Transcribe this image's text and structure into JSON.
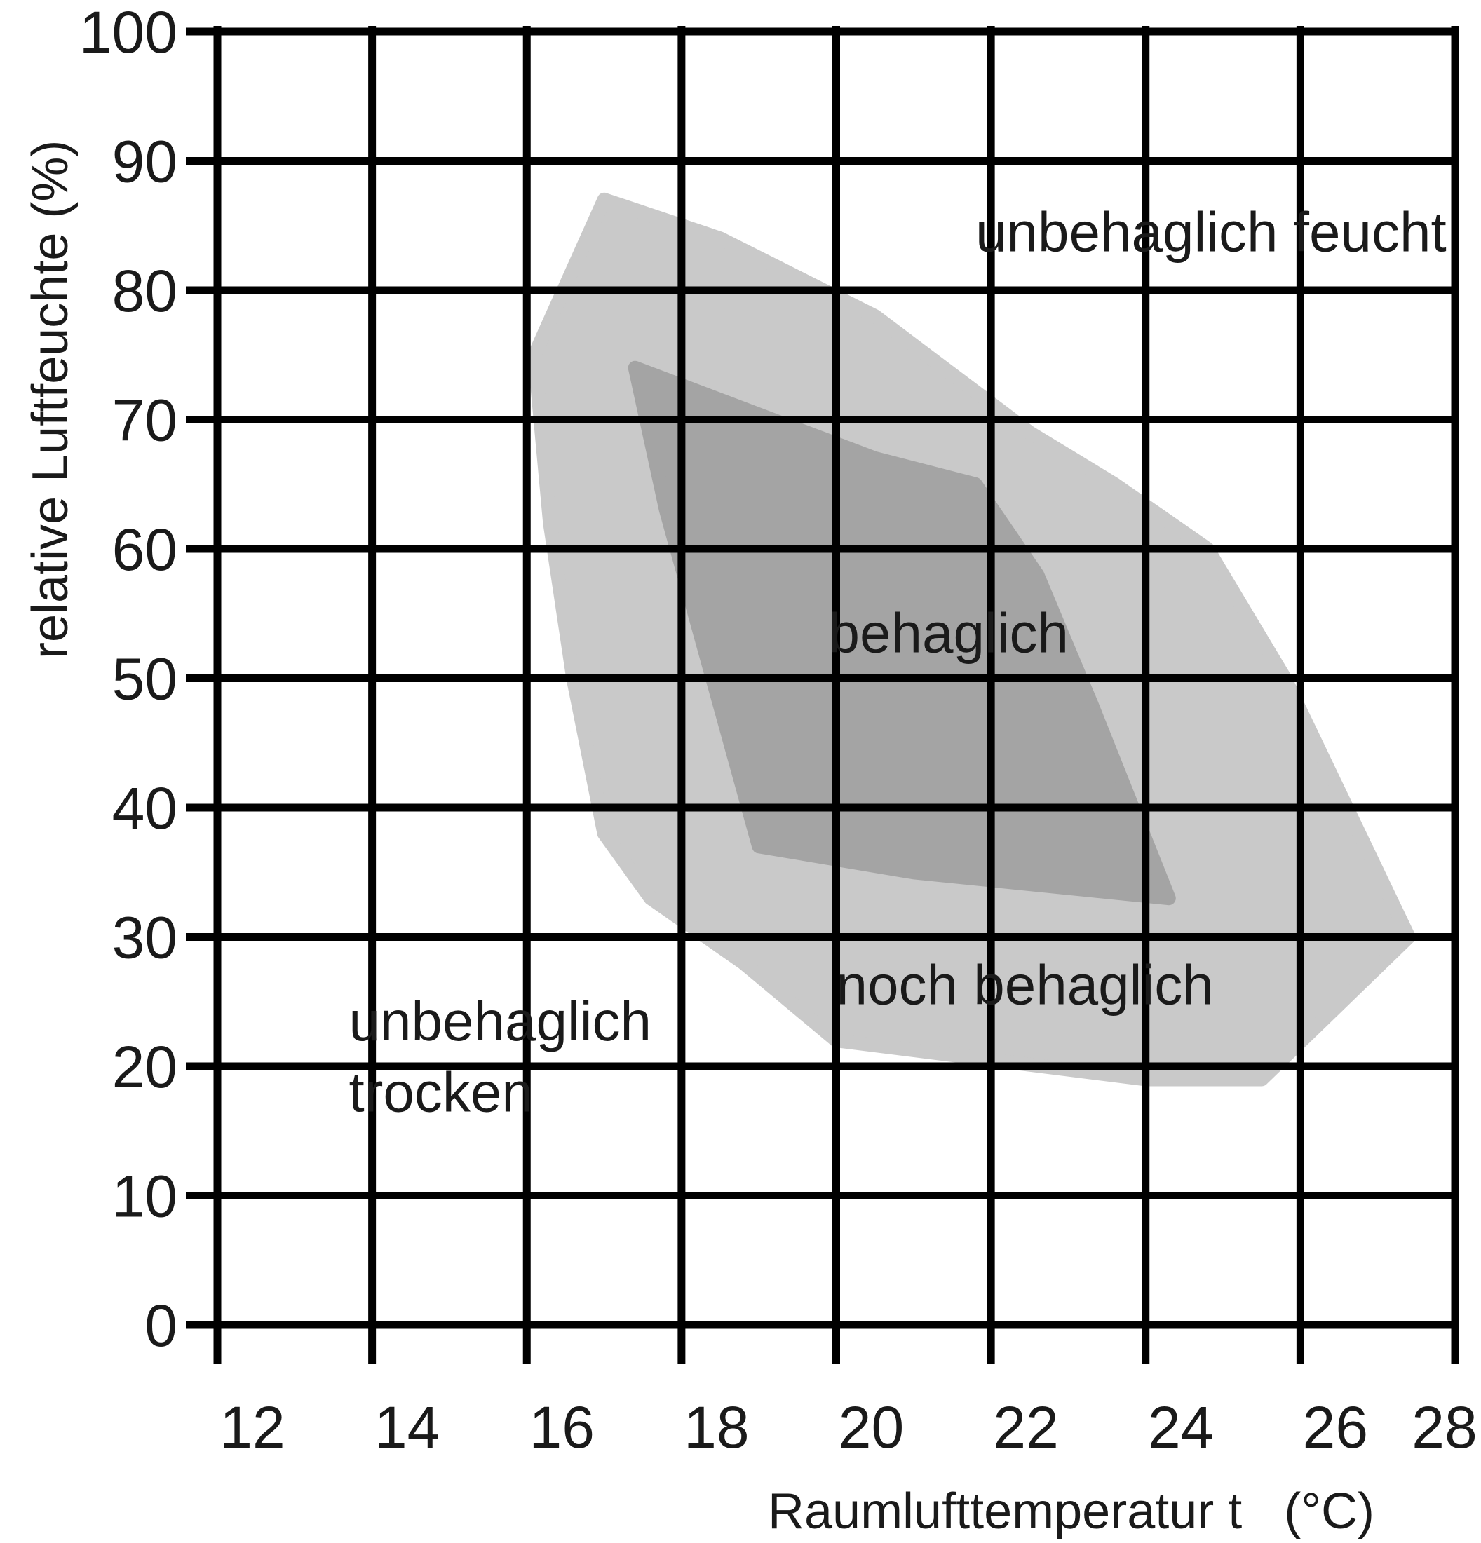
{
  "chart_data": {
    "type": "area",
    "xlabel": "Raumlufttemperatur t",
    "xlabel_unit": "(°C)",
    "ylabel": "relative Luftfeuchte (%)",
    "xlim": [
      12,
      28
    ],
    "ylim": [
      0,
      100
    ],
    "x_ticks": [
      "12",
      "14",
      "16",
      "18",
      "20",
      "22",
      "24",
      "26",
      "28"
    ],
    "y_ticks": [
      "0",
      "10",
      "20",
      "30",
      "40",
      "50",
      "60",
      "70",
      "80",
      "90",
      "100"
    ],
    "grid": true,
    "zones": [
      {
        "name": "noch behaglich",
        "color": "#c9c9c9",
        "points": [
          [
            16.1,
            75
          ],
          [
            17.0,
            87
          ],
          [
            18.5,
            84
          ],
          [
            20.5,
            78
          ],
          [
            22.5,
            69
          ],
          [
            23.6,
            65
          ],
          [
            24.8,
            60
          ],
          [
            25.8,
            50
          ],
          [
            27.4,
            30
          ],
          [
            25.5,
            19
          ],
          [
            24.0,
            19
          ],
          [
            20.0,
            22
          ],
          [
            18.8,
            28
          ],
          [
            17.6,
            33
          ],
          [
            17.0,
            38
          ],
          [
            16.6,
            50
          ],
          [
            16.3,
            62
          ]
        ]
      },
      {
        "name": "behaglich",
        "color": "#a4a4a4",
        "points": [
          [
            17.4,
            74
          ],
          [
            20.5,
            67
          ],
          [
            21.8,
            65
          ],
          [
            22.6,
            58
          ],
          [
            23.3,
            48
          ],
          [
            24.3,
            33
          ],
          [
            21.0,
            35
          ],
          [
            19.0,
            37
          ],
          [
            18.4,
            50
          ],
          [
            17.8,
            63
          ]
        ]
      }
    ],
    "annotations": [
      {
        "text": "unbehaglich feucht",
        "x": 21.8,
        "y": 83
      },
      {
        "text": "behaglich",
        "x": 19.9,
        "y": 52
      },
      {
        "text": "noch behaglich",
        "x": 20.0,
        "y": 24.8
      },
      {
        "text": "unbehaglich",
        "x": 13.7,
        "y": 22
      },
      {
        "text": "trocken",
        "x": 13.7,
        "y": 16.5
      }
    ]
  }
}
